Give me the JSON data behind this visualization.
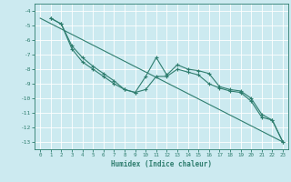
{
  "xlabel": "Humidex (Indice chaleur)",
  "ylabel": "",
  "xlim": [
    -0.5,
    23.5
  ],
  "ylim": [
    -13.5,
    -3.5
  ],
  "yticks": [
    -13,
    -12,
    -11,
    -10,
    -9,
    -8,
    -7,
    -6,
    -5,
    -4
  ],
  "xticks": [
    0,
    1,
    2,
    3,
    4,
    5,
    6,
    7,
    8,
    9,
    10,
    11,
    12,
    13,
    14,
    15,
    16,
    17,
    18,
    19,
    20,
    21,
    22,
    23
  ],
  "bg_color": "#cceaf0",
  "grid_color": "#ffffff",
  "line_color": "#2e7d6e",
  "series": {
    "line_straight": {
      "x": [
        0,
        23
      ],
      "y": [
        -4.5,
        -13.0
      ],
      "marker": false
    },
    "line_jagged1": {
      "x": [
        1,
        2,
        3,
        4,
        5,
        6,
        7,
        8,
        9,
        10,
        11,
        12,
        13,
        14,
        15,
        16,
        17,
        18,
        19,
        20,
        21,
        22,
        23
      ],
      "y": [
        -4.5,
        -4.9,
        -6.4,
        -7.2,
        -7.8,
        -8.3,
        -8.8,
        -9.4,
        -9.6,
        -8.5,
        -7.2,
        -8.4,
        -7.7,
        -8.0,
        -8.1,
        -8.3,
        -9.2,
        -9.4,
        -9.5,
        -10.0,
        -11.1,
        -11.5,
        -13.0
      ],
      "marker": true
    },
    "line_jagged2": {
      "x": [
        1,
        2,
        3,
        4,
        5,
        6,
        7,
        8,
        9,
        10,
        11,
        12,
        13,
        14,
        15,
        16,
        17,
        18,
        19,
        20,
        21,
        22,
        23
      ],
      "y": [
        -4.5,
        -4.9,
        -6.6,
        -7.5,
        -8.0,
        -8.5,
        -9.0,
        -9.4,
        -9.6,
        -9.4,
        -8.5,
        -8.5,
        -8.0,
        -8.2,
        -8.4,
        -9.0,
        -9.3,
        -9.5,
        -9.6,
        -10.2,
        -11.3,
        -11.5,
        -13.0
      ],
      "marker": true
    }
  }
}
